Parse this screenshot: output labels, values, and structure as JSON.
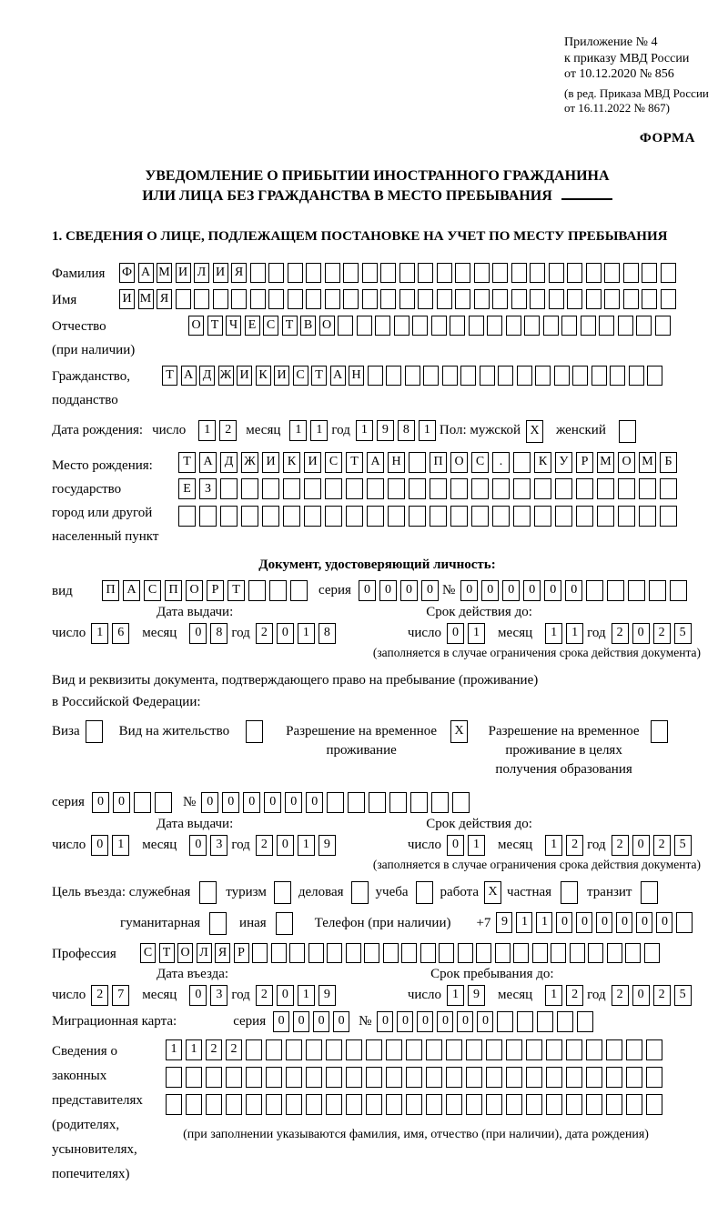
{
  "header": {
    "annex_lines": {
      "l1": "Приложение № 4",
      "l2": "к приказу МВД России",
      "l3": "от 10.12.2020 № 856"
    },
    "annex_note": {
      "l1": "(в ред. Приказа МВД России",
      "l2": "от 16.11.2022 № 867)"
    },
    "forma": "ФОРМА",
    "title_line1": "УВЕДОМЛЕНИЕ О ПРИБЫТИИ ИНОСТРАННОГО ГРАЖДАНИНА",
    "title_line2": "ИЛИ ЛИЦА БЕЗ ГРАЖДАНСТВА В МЕСТО ПРЕБЫВАНИЯ",
    "section1": "1. СВЕДЕНИЯ О ЛИЦЕ, ПОДЛЕЖАЩЕМ ПОСТАНОВКЕ НА УЧЕТ ПО МЕСТУ ПРЕБЫВАНИЯ"
  },
  "labels": {
    "surname": "Фамилия",
    "given_name": "Имя",
    "patronymic": "Отчество",
    "patronymic_note": "(при наличии)",
    "citizenship": "Гражданство,",
    "citizenship2": "подданство",
    "birth_date": "Дата рождения:",
    "day": "число",
    "month": "месяц",
    "year": "год",
    "sex_male": "Пол: мужской",
    "sex_female": "женский",
    "birth_place": "Место рождения:",
    "birth_place2": "государство",
    "birth_place3": "город или другой",
    "birth_place4": "населенный пункт",
    "id_doc_header": "Документ, удостоверяющий личность:",
    "doc_type": "вид",
    "series": "серия",
    "number": "№",
    "issue_date": "Дата выдачи:",
    "valid_until": "Срок действия до:",
    "valid_note": "(заполняется в случае ограничения срока действия документа)",
    "resid_doc_line1": "Вид и реквизиты документа, подтверждающего право на пребывание (проживание)",
    "resid_doc_line2": "в Российской Федерации:",
    "visa": "Виза",
    "residence_permit": "Вид на жительство",
    "rvp_line1": "Разрешение на временное",
    "rvp_line2": "проживание",
    "rvp_edu_line1": "Разрешение на временное",
    "rvp_edu_line2": "проживание в целях",
    "rvp_edu_line3": "получения образования",
    "purpose": "Цель въезда: служебная",
    "tourism": "туризм",
    "commercial": "деловая",
    "study": "учеба",
    "work": "работа",
    "private": "частная",
    "transit": "транзит",
    "humanitarian": "гуманитарная",
    "other": "иная",
    "phone": "Телефон (при наличии)",
    "phone_prefix": "+7",
    "profession": "Профессия",
    "entry_date": "Дата въезда:",
    "stay_until": "Срок пребывания до:",
    "migration_card": "Миграционная карта:",
    "guardians_l1": "Сведения о",
    "guardians_l2": "законных",
    "guardians_l3": "представителях",
    "guardians_l4": "(родителях,",
    "guardians_l5": "усыновителях,",
    "guardians_l6": "попечителях)",
    "guardians_note": "(при заполнении указываются фамилия, имя, отчество (при наличии), дата рождения)"
  },
  "rows": {
    "surname": {
      "len": 30,
      "value": "ФАМИЛИЯ"
    },
    "given_name": {
      "len": 30,
      "value": "ИМЯ"
    },
    "patronymic": {
      "len": 26,
      "value": "ОТЧЕСТВО"
    },
    "citizenship": {
      "len": 27,
      "value": "ТАДЖИКИСТАН"
    },
    "birth_day": {
      "len": 2,
      "value": "12"
    },
    "birth_month": {
      "len": 2,
      "value": "11"
    },
    "birth_year": {
      "len": 4,
      "value": "1981"
    },
    "birthplace1": {
      "len": 24,
      "value": "ТАДЖИКИСТАН ПОС. КУРМОМБ"
    },
    "birthplace2": {
      "len": 24,
      "value": "ЕЗ"
    },
    "birthplace3": {
      "len": 24,
      "value": ""
    },
    "doc_type": {
      "len": 10,
      "value": "ПАСПОРТ"
    },
    "doc_series": {
      "len": 4,
      "value": "0000"
    },
    "doc_number": {
      "len": 11,
      "value": "000000"
    },
    "doc_issue_day": {
      "len": 2,
      "value": "16"
    },
    "doc_issue_month": {
      "len": 2,
      "value": "08"
    },
    "doc_issue_year": {
      "len": 4,
      "value": "2018"
    },
    "doc_exp_day": {
      "len": 2,
      "value": "01"
    },
    "doc_exp_month": {
      "len": 2,
      "value": "11"
    },
    "doc_exp_year": {
      "len": 4,
      "value": "2025"
    },
    "resid_series": {
      "len": 4,
      "value": "00"
    },
    "resid_number": {
      "len": 13,
      "value": "000000"
    },
    "resid_issue_day": {
      "len": 2,
      "value": "01"
    },
    "resid_issue_month": {
      "len": 2,
      "value": "03"
    },
    "resid_issue_year": {
      "len": 4,
      "value": "2019"
    },
    "resid_exp_day": {
      "len": 2,
      "value": "01"
    },
    "resid_exp_month": {
      "len": 2,
      "value": "12"
    },
    "resid_exp_year": {
      "len": 4,
      "value": "2025"
    },
    "phone": {
      "len": 10,
      "value": "911000000"
    },
    "profession": {
      "len": 28,
      "value": "СТОЛЯР"
    },
    "entry_day": {
      "len": 2,
      "value": "27"
    },
    "entry_month": {
      "len": 2,
      "value": "03"
    },
    "entry_year": {
      "len": 4,
      "value": "2019"
    },
    "stay_day": {
      "len": 2,
      "value": "19"
    },
    "stay_month": {
      "len": 2,
      "value": "12"
    },
    "stay_year": {
      "len": 4,
      "value": "2025"
    },
    "mig_series": {
      "len": 4,
      "value": "0000"
    },
    "mig_number": {
      "len": 11,
      "value": "000000"
    },
    "guardians1": {
      "len": 25,
      "value": "1122"
    },
    "guardians2": {
      "len": 25,
      "value": ""
    },
    "guardians3": {
      "len": 25,
      "value": ""
    }
  },
  "checks": {
    "male": "X",
    "female": "",
    "visa": "",
    "residence_permit": "",
    "rvp": "X",
    "rvp_edu": "",
    "business": "",
    "tourism": "",
    "commercial": "",
    "study": "",
    "work": "X",
    "private": "",
    "transit": "",
    "humanitarian": "",
    "other": ""
  }
}
